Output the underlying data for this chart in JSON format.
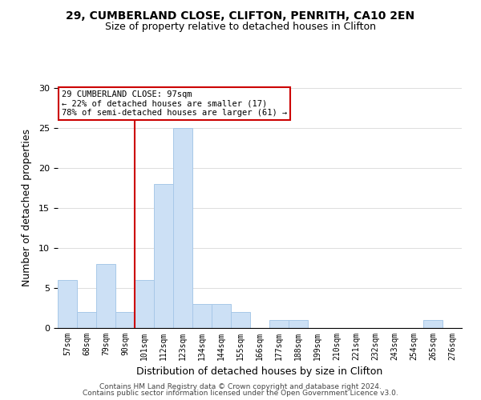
{
  "title1": "29, CUMBERLAND CLOSE, CLIFTON, PENRITH, CA10 2EN",
  "title2": "Size of property relative to detached houses in Clifton",
  "xlabel": "Distribution of detached houses by size in Clifton",
  "ylabel": "Number of detached properties",
  "bar_color": "#cce0f5",
  "bar_edge_color": "#a8c8e8",
  "bins": [
    "57sqm",
    "68sqm",
    "79sqm",
    "90sqm",
    "101sqm",
    "112sqm",
    "123sqm",
    "134sqm",
    "144sqm",
    "155sqm",
    "166sqm",
    "177sqm",
    "188sqm",
    "199sqm",
    "210sqm",
    "221sqm",
    "232sqm",
    "243sqm",
    "254sqm",
    "265sqm",
    "276sqm"
  ],
  "values": [
    6,
    2,
    8,
    2,
    6,
    18,
    25,
    3,
    3,
    2,
    0,
    1,
    1,
    0,
    0,
    0,
    0,
    0,
    0,
    1,
    0
  ],
  "vline_x_idx": 4,
  "vline_color": "#cc0000",
  "annotation_title": "29 CUMBERLAND CLOSE: 97sqm",
  "annotation_line1": "← 22% of detached houses are smaller (17)",
  "annotation_line2": "78% of semi-detached houses are larger (61) →",
  "annotation_box_color": "#ffffff",
  "annotation_box_edge": "#cc0000",
  "ylim": [
    0,
    30
  ],
  "yticks": [
    0,
    5,
    10,
    15,
    20,
    25,
    30
  ],
  "footer1": "Contains HM Land Registry data © Crown copyright and database right 2024.",
  "footer2": "Contains public sector information licensed under the Open Government Licence v3.0."
}
